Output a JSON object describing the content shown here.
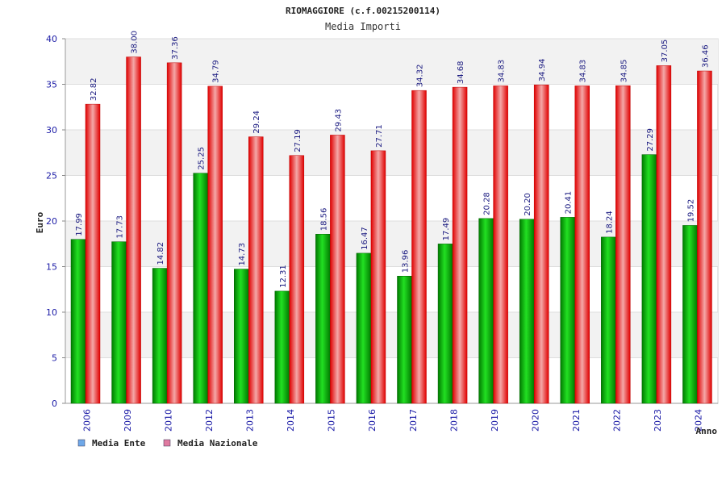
{
  "chart_data": {
    "type": "bar",
    "title": "RIOMAGGIORE (c.f.00215200114)",
    "subtitle": "Media Importi",
    "xlabel": "Anno",
    "ylabel": "Euro",
    "ylim": [
      0,
      40
    ],
    "yticks": [
      "0",
      "5",
      "10",
      "15",
      "20",
      "25",
      "30",
      "35",
      "40"
    ],
    "categories": [
      "2006",
      "2009",
      "2010",
      "2012",
      "2013",
      "2014",
      "2015",
      "2016",
      "2017",
      "2018",
      "2019",
      "2020",
      "2021",
      "2022",
      "2023",
      "2024"
    ],
    "series": [
      {
        "name": "Media Ente",
        "color": "#00b000",
        "legend_color": "#6fa8e8",
        "values": [
          17.99,
          17.73,
          14.82,
          25.25,
          14.73,
          12.31,
          18.56,
          16.47,
          13.96,
          17.49,
          20.28,
          20.2,
          20.41,
          18.24,
          27.29,
          19.52
        ],
        "labels": [
          "17.99",
          "17.73",
          "14.82",
          "25.25",
          "14.73",
          "12.31",
          "18.56",
          "16.47",
          "13.96",
          "17.49",
          "20.28",
          "20.20",
          "20.41",
          "18.24",
          "27.29",
          "19.52"
        ]
      },
      {
        "name": "Media Nazionale",
        "color": "#e01010",
        "legend_color": "#e07aa0",
        "values": [
          32.82,
          38.0,
          37.36,
          34.79,
          29.24,
          27.19,
          29.43,
          27.71,
          34.32,
          34.68,
          34.83,
          34.94,
          34.83,
          34.85,
          37.05,
          36.46
        ],
        "labels": [
          "32.82",
          "38.00",
          "37.36",
          "34.79",
          "29.24",
          "27.19",
          "29.43",
          "27.71",
          "34.32",
          "34.68",
          "34.83",
          "34.94",
          "34.83",
          "34.85",
          "37.05",
          "36.46"
        ]
      }
    ],
    "grid": true,
    "legend": "bottom-left"
  }
}
